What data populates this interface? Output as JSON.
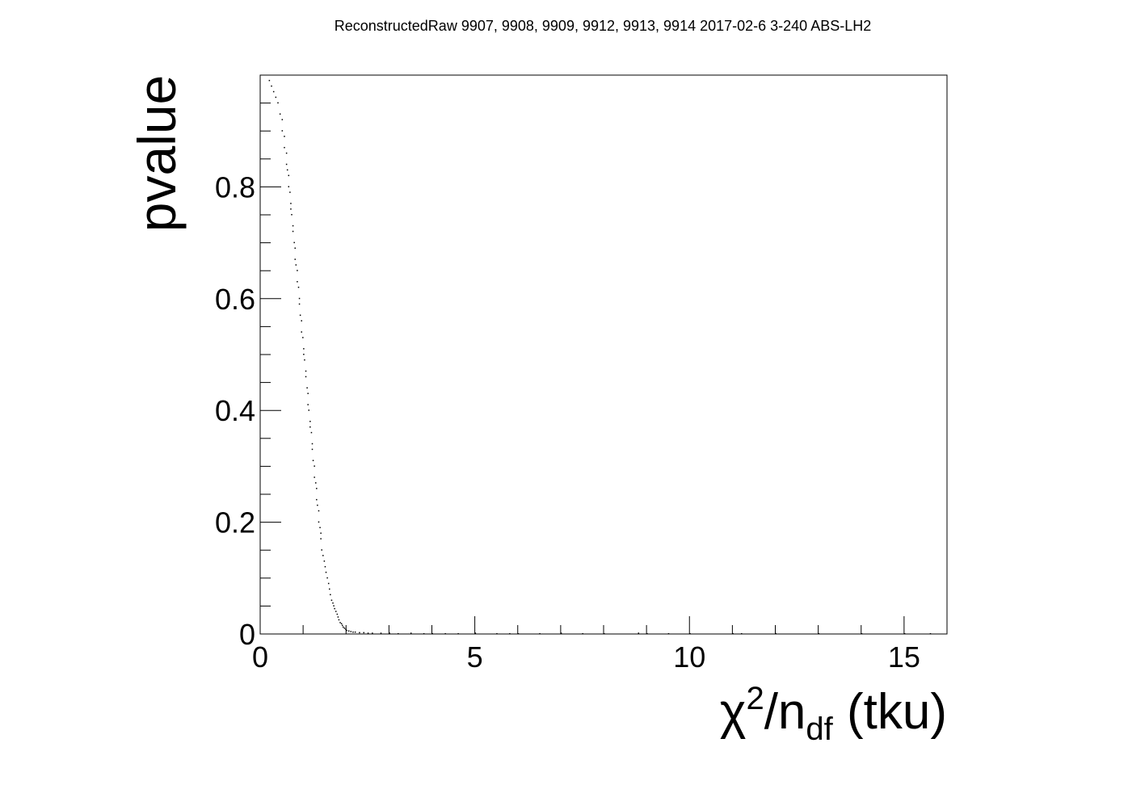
{
  "chart_data": {
    "type": "scatter",
    "title": "ReconstructedRaw 9907, 9908, 9909, 9912, 9913, 9914 2017-02-6 3-240 ABS-LH2",
    "xlabel_parts": {
      "chi": "χ",
      "sup": "2",
      "slash_n": "/n",
      "sub": "df",
      "rest": " (tku)"
    },
    "ylabel": "pvalue",
    "xlim": [
      0,
      16
    ],
    "ylim": [
      0,
      1
    ],
    "x_ticks": [
      "0",
      "5",
      "10",
      "15"
    ],
    "y_ticks": [
      "0",
      "0.2",
      "0.4",
      "0.6",
      "0.8"
    ],
    "x_tick_values": [
      0,
      5,
      10,
      15
    ],
    "y_tick_values": [
      0,
      0.2,
      0.4,
      0.6,
      0.8
    ],
    "grid": false,
    "legend": "none",
    "marker_color": "#000000",
    "series": [
      {
        "x": [
          0.2,
          0.25,
          0.3,
          0.35,
          0.4,
          0.45,
          0.5,
          0.5,
          0.55,
          0.55,
          0.6,
          0.6,
          0.62,
          0.65,
          0.65,
          0.68,
          0.7,
          0.7,
          0.72,
          0.75,
          0.75,
          0.78,
          0.8,
          0.8,
          0.82,
          0.85,
          0.85,
          0.88,
          0.9,
          0.9,
          0.92,
          0.95,
          0.95,
          0.98,
          1.0,
          1.0,
          1.02,
          1.05,
          1.05,
          1.08,
          1.1,
          1.1,
          1.12,
          1.15,
          1.15,
          1.18,
          1.2,
          1.2,
          1.22,
          1.25,
          1.25,
          1.28,
          1.3,
          1.3,
          1.32,
          1.35,
          1.35,
          1.38,
          1.4,
          1.4,
          1.42,
          1.45,
          1.48,
          1.5,
          1.52,
          1.55,
          1.58,
          1.6,
          1.62,
          1.65,
          1.68,
          1.7,
          1.72,
          1.75,
          1.78,
          1.8,
          1.82,
          1.85,
          1.88,
          1.9,
          1.92,
          1.95,
          1.98,
          2.0,
          2.05,
          2.1,
          2.15,
          2.2,
          2.3,
          2.4,
          2.5,
          2.6,
          2.8,
          3.0,
          3.2,
          3.5,
          3.8,
          4.0,
          4.3,
          4.6,
          5.0,
          5.5,
          5.8,
          6.0,
          6.5,
          7.0,
          7.5,
          8.0,
          8.8,
          9.0,
          9.5,
          10.0,
          11.0,
          11.2,
          12.0,
          13.0,
          14.0,
          15.0,
          15.6
        ],
        "y": [
          0.99,
          0.98,
          0.97,
          0.96,
          0.95,
          0.93,
          0.92,
          0.9,
          0.89,
          0.87,
          0.86,
          0.84,
          0.83,
          0.82,
          0.8,
          0.79,
          0.77,
          0.76,
          0.75,
          0.73,
          0.72,
          0.7,
          0.69,
          0.67,
          0.66,
          0.65,
          0.63,
          0.62,
          0.6,
          0.59,
          0.57,
          0.56,
          0.54,
          0.53,
          0.51,
          0.5,
          0.49,
          0.47,
          0.46,
          0.44,
          0.43,
          0.41,
          0.4,
          0.38,
          0.37,
          0.36,
          0.34,
          0.33,
          0.31,
          0.3,
          0.28,
          0.27,
          0.26,
          0.24,
          0.23,
          0.22,
          0.2,
          0.19,
          0.18,
          0.17,
          0.15,
          0.14,
          0.13,
          0.12,
          0.11,
          0.1,
          0.09,
          0.08,
          0.07,
          0.06,
          0.055,
          0.05,
          0.045,
          0.04,
          0.035,
          0.03,
          0.025,
          0.02,
          0.018,
          0.015,
          0.012,
          0.01,
          0.008,
          0.006,
          0.005,
          0.004,
          0.003,
          0.003,
          0.002,
          0.002,
          0.001,
          0.001,
          0.001,
          0.001,
          0.0,
          0.001,
          0.0,
          0.0,
          0.0,
          0.0,
          0.001,
          0.0,
          0.0,
          0.0,
          0.0,
          0.001,
          0.0,
          0.0,
          0.001,
          0.0,
          0.0,
          0.0,
          0.0,
          0.0,
          0.0,
          0.0,
          0.0,
          0.0,
          0.0
        ]
      }
    ]
  }
}
